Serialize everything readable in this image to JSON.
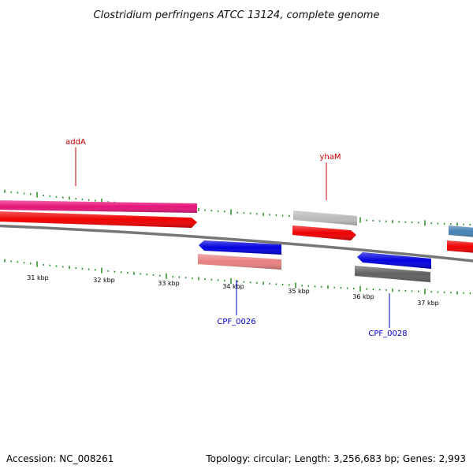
{
  "title": "Clostridium perfringens ATCC 13124, complete genome",
  "footer": {
    "accession": "Accession: NC_008261",
    "summary": "Topology: circular; Length: 3,256,683 bp; Genes: 2,993"
  },
  "colors": {
    "backbone": "#777777",
    "tick": "#228b22",
    "forward_label": "#cc0000",
    "reverse_label": "#0000cc"
  },
  "scale": {
    "unit": "kbp",
    "labels": [
      "31 kbp",
      "32 kbp",
      "33 kbp",
      "34 kbp",
      "35 kbp",
      "36 kbp",
      "37 kbp"
    ]
  },
  "features": [
    {
      "name": "addA-upper",
      "color": "#e6147a"
    },
    {
      "name": "addA",
      "color": "#ee0000"
    },
    {
      "name": "CPF_0026-upper",
      "color": "#0000dd"
    },
    {
      "name": "CPF_0026",
      "color": "#e88080"
    },
    {
      "name": "yhaM-upper",
      "color": "#bbbbbb"
    },
    {
      "name": "yhaM",
      "color": "#ee0000"
    },
    {
      "name": "CPF_0028-upper",
      "color": "#0000dd"
    },
    {
      "name": "CPF_0028",
      "color": "#606060"
    },
    {
      "name": "right-upper",
      "color": "#4682b4"
    },
    {
      "name": "right-lower",
      "color": "#ee0000"
    }
  ],
  "labels": {
    "addA": "addA",
    "yhaM": "yhaM",
    "CPF_0026": "CPF_0026",
    "CPF_0028": "CPF_0028"
  }
}
